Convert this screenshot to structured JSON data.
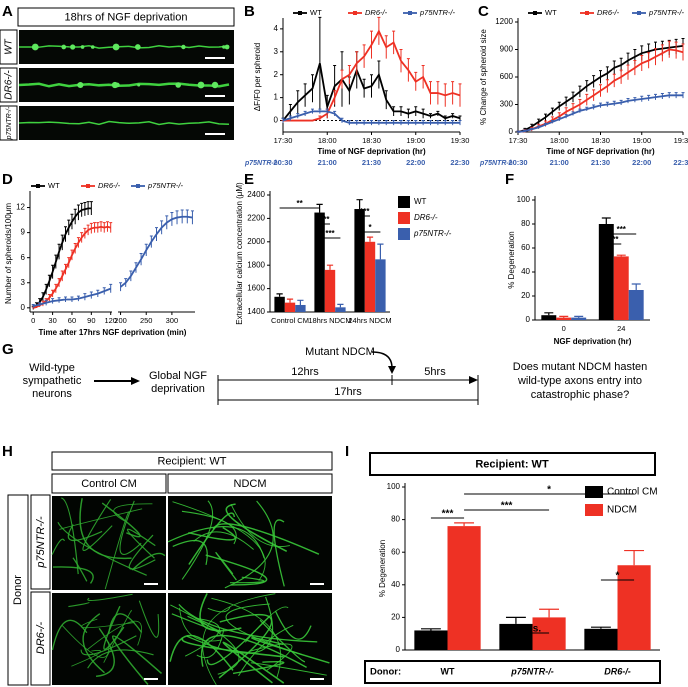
{
  "panel_labels": [
    "A",
    "B",
    "C",
    "D",
    "E",
    "F",
    "G",
    "H",
    "I"
  ],
  "panel_a": {
    "title": "18hrs of NGF deprivation",
    "rows": [
      "WT",
      "DR6-/-",
      "p75NTR-/-"
    ]
  },
  "chart_data": [
    {
      "type": "line",
      "ylabel": "ΔF/F0 per spheroid",
      "xlabel": "Time of NGF deprivation (hr)",
      "xlim": [
        1050,
        1170
      ],
      "xticks": [
        {
          "value": 1050,
          "label": "17:30"
        },
        {
          "value": 1080,
          "label": "18:00"
        },
        {
          "value": 1110,
          "label": "18:30"
        },
        {
          "value": 1140,
          "label": "19:00"
        },
        {
          "value": 1170,
          "label": "19:30"
        }
      ],
      "x2label": "p75NTR-/-",
      "x2lim": [
        1230,
        1350
      ],
      "x2ticks": [
        {
          "value": 1230,
          "label": "20:30"
        },
        {
          "value": 1260,
          "label": "21:00"
        },
        {
          "value": 1290,
          "label": "21:30"
        },
        {
          "value": 1320,
          "label": "22:00"
        },
        {
          "value": 1350,
          "label": "22:30"
        }
      ],
      "ylim": [
        -0.5,
        4.3
      ],
      "yticks": [
        0,
        1,
        2,
        3,
        4
      ],
      "reference_line": 0,
      "x": [
        1050,
        1055,
        1060,
        1065,
        1070,
        1075,
        1080,
        1085,
        1090,
        1095,
        1100,
        1105,
        1110,
        1115,
        1120,
        1125,
        1130,
        1135,
        1140,
        1145,
        1150,
        1155,
        1160,
        1165,
        1170
      ],
      "series": [
        {
          "name": "WT",
          "color": "#000000",
          "values": [
            0.0,
            0.4,
            0.8,
            1.1,
            1.4,
            2.5,
            0.6,
            1.5,
            1.8,
            1.3,
            2.2,
            1.4,
            1.5,
            2.0,
            0.9,
            0.4,
            0.4,
            0.3,
            0.4,
            0.3,
            0.2,
            0.3,
            0.1,
            0.2,
            0.1
          ],
          "errors": [
            0.1,
            0.3,
            0.5,
            0.5,
            0.6,
            2.0,
            0.5,
            0.9,
            1.2,
            0.6,
            0.8,
            0.4,
            0.5,
            0.6,
            0.4,
            0.2,
            0.2,
            0.2,
            0.2,
            0.2,
            0.1,
            0.1,
            0.1,
            0.1,
            0.1
          ]
        },
        {
          "name": "DR6-/-",
          "color": "#ee3124",
          "values": [
            0.0,
            0.0,
            0.0,
            0.0,
            0.0,
            0.1,
            0.3,
            1.0,
            1.8,
            2.0,
            2.5,
            2.8,
            3.3,
            3.9,
            3.2,
            3.4,
            2.6,
            2.2,
            1.7,
            1.9,
            1.2,
            1.2,
            1.1,
            1.2,
            1.1
          ],
          "errors": [
            0.0,
            0.0,
            0.0,
            0.0,
            0.0,
            0.1,
            0.2,
            0.3,
            0.4,
            0.4,
            0.5,
            0.5,
            0.6,
            0.6,
            0.5,
            0.5,
            0.5,
            0.5,
            0.4,
            0.5,
            0.5,
            0.5,
            0.5,
            0.5,
            0.5
          ]
        },
        {
          "name": "p75NTR-/-",
          "color": "#3a5fad",
          "axis": "x2",
          "x": [
            1230,
            1235,
            1240,
            1245,
            1250,
            1255,
            1260,
            1265,
            1270,
            1275,
            1280,
            1285,
            1290,
            1295,
            1300,
            1305,
            1310,
            1315,
            1320,
            1325,
            1330,
            1335,
            1340,
            1345,
            1350
          ],
          "values": [
            0.0,
            0.1,
            0.2,
            0.3,
            0.4,
            0.4,
            0.4,
            0.3,
            0.0,
            -0.1,
            -0.1,
            -0.1,
            -0.1,
            -0.1,
            -0.1,
            -0.1,
            -0.1,
            -0.1,
            -0.1,
            -0.1,
            -0.1,
            -0.1,
            -0.1,
            -0.1,
            -0.1
          ],
          "errors": [
            0.1,
            0.1,
            0.1,
            0.1,
            0.1,
            0.1,
            0.1,
            0.1,
            0.1,
            0.1,
            0.1,
            0.1,
            0.1,
            0.1,
            0.1,
            0.1,
            0.1,
            0.1,
            0.1,
            0.1,
            0.1,
            0.1,
            0.1,
            0.1,
            0.1
          ]
        }
      ]
    },
    {
      "type": "line",
      "ylabel": "% Change of spheroid size",
      "xlabel": "Time of NGF deprivation (hr)",
      "xlim": [
        1050,
        1170
      ],
      "xticks": [
        {
          "value": 1050,
          "label": "17:30"
        },
        {
          "value": 1080,
          "label": "18:00"
        },
        {
          "value": 1110,
          "label": "18:30"
        },
        {
          "value": 1140,
          "label": "19:00"
        },
        {
          "value": 1170,
          "label": "19:30"
        }
      ],
      "x2label": "p75NTR-/-",
      "x2lim": [
        1230,
        1350
      ],
      "x2ticks": [
        {
          "value": 1230,
          "label": "20:30"
        },
        {
          "value": 1260,
          "label": "21:00"
        },
        {
          "value": 1290,
          "label": "21:30"
        },
        {
          "value": 1320,
          "label": "22:00"
        },
        {
          "value": 1350,
          "label": "22:30"
        }
      ],
      "ylim": [
        0,
        1200
      ],
      "yticks": [
        0,
        300,
        600,
        900,
        1200
      ],
      "x": [
        1050,
        1055,
        1060,
        1065,
        1070,
        1075,
        1080,
        1085,
        1090,
        1095,
        1100,
        1105,
        1110,
        1115,
        1120,
        1125,
        1130,
        1135,
        1140,
        1145,
        1150,
        1155,
        1160,
        1165,
        1170
      ],
      "series": [
        {
          "name": "WT",
          "color": "#000000",
          "values": [
            0,
            20,
            60,
            110,
            160,
            220,
            280,
            330,
            380,
            440,
            500,
            550,
            600,
            640,
            700,
            730,
            780,
            820,
            860,
            880,
            900,
            910,
            920,
            930,
            940
          ],
          "errors": [
            10,
            20,
            25,
            30,
            35,
            40,
            45,
            50,
            55,
            60,
            60,
            65,
            70,
            70,
            75,
            75,
            80,
            80,
            80,
            80,
            80,
            80,
            80,
            80,
            80
          ]
        },
        {
          "name": "DR6-/-",
          "color": "#ee3124",
          "values": [
            0,
            10,
            30,
            60,
            90,
            130,
            170,
            220,
            260,
            300,
            350,
            400,
            450,
            500,
            560,
            600,
            650,
            700,
            750,
            780,
            820,
            860,
            900,
            890,
            870
          ],
          "errors": [
            10,
            15,
            20,
            25,
            30,
            35,
            40,
            45,
            50,
            55,
            60,
            60,
            65,
            70,
            70,
            75,
            80,
            80,
            85,
            85,
            90,
            90,
            90,
            90,
            90
          ]
        },
        {
          "name": "p75NTR-/-",
          "color": "#3a5fad",
          "axis": "x2",
          "x": [
            1230,
            1235,
            1240,
            1245,
            1250,
            1255,
            1260,
            1265,
            1270,
            1275,
            1280,
            1285,
            1290,
            1295,
            1300,
            1305,
            1310,
            1315,
            1320,
            1325,
            1330,
            1335,
            1340,
            1345,
            1350
          ],
          "values": [
            0,
            10,
            30,
            50,
            80,
            110,
            140,
            170,
            200,
            230,
            250,
            270,
            290,
            300,
            310,
            320,
            340,
            350,
            360,
            370,
            380,
            390,
            400,
            400,
            400
          ],
          "errors": [
            10,
            10,
            10,
            15,
            15,
            15,
            20,
            20,
            20,
            20,
            20,
            25,
            25,
            25,
            25,
            25,
            25,
            25,
            30,
            30,
            30,
            30,
            30,
            30,
            30
          ]
        }
      ]
    },
    {
      "type": "line",
      "ylabel": "Number of spheroids/100μm",
      "xlabel": "Time after 17hrs NGF deprivation (min)",
      "xlim_segments": [
        [
          -5,
          122
        ],
        [
          195,
          345
        ]
      ],
      "xticks": [
        0,
        30,
        60,
        90,
        120,
        200,
        250,
        300
      ],
      "ylim": [
        -0.5,
        13.5
      ],
      "yticks": [
        0,
        3,
        6,
        9,
        12
      ],
      "series": [
        {
          "name": "WT",
          "color": "#000000",
          "x": [
            0,
            5,
            10,
            15,
            20,
            25,
            30,
            35,
            40,
            45,
            50,
            55,
            60,
            65,
            70,
            75,
            80,
            85,
            90
          ],
          "values": [
            0,
            0.3,
            0.7,
            1.3,
            2.2,
            3.2,
            4.3,
            5.5,
            6.7,
            7.8,
            8.8,
            9.6,
            10.3,
            10.9,
            11.4,
            11.7,
            11.8,
            11.9,
            11.9
          ],
          "errors": [
            0.2,
            0.3,
            0.4,
            0.5,
            0.6,
            0.7,
            0.8,
            0.8,
            0.9,
            0.9,
            0.9,
            0.9,
            0.9,
            0.9,
            0.9,
            0.8,
            0.8,
            0.8,
            0.8
          ]
        },
        {
          "name": "DR6-/-",
          "color": "#ee3124",
          "x": [
            0,
            5,
            10,
            15,
            20,
            25,
            30,
            35,
            40,
            45,
            50,
            55,
            60,
            65,
            70,
            75,
            80,
            85,
            90,
            95,
            100,
            105,
            110,
            115,
            120
          ],
          "values": [
            0,
            0.1,
            0.3,
            0.5,
            0.8,
            1.2,
            1.7,
            2.3,
            3.0,
            3.8,
            4.6,
            5.4,
            6.3,
            7.1,
            7.8,
            8.4,
            8.9,
            9.3,
            9.5,
            9.6,
            9.6,
            9.7,
            9.6,
            9.7,
            9.6
          ],
          "errors": [
            0.1,
            0.1,
            0.2,
            0.3,
            0.3,
            0.4,
            0.4,
            0.5,
            0.5,
            0.6,
            0.6,
            0.6,
            0.6,
            0.6,
            0.6,
            0.6,
            0.6,
            0.6,
            0.6,
            0.6,
            0.6,
            0.6,
            0.6,
            0.6,
            0.6
          ]
        },
        {
          "name": "p75NTR-/-",
          "color": "#3a5fad",
          "x": [
            0,
            10,
            20,
            30,
            40,
            50,
            60,
            70,
            80,
            90,
            100,
            110,
            120,
            200,
            210,
            220,
            230,
            240,
            250,
            260,
            270,
            280,
            290,
            300,
            310,
            320,
            330,
            340
          ],
          "values": [
            0.2,
            0.4,
            0.6,
            0.8,
            0.9,
            1.0,
            1.0,
            1.1,
            1.3,
            1.5,
            1.7,
            2.0,
            2.3,
            2.5,
            3.0,
            3.8,
            4.8,
            5.8,
            6.9,
            7.9,
            8.8,
            9.6,
            10.2,
            10.6,
            10.8,
            10.9,
            10.9,
            10.8
          ],
          "errors": [
            0.2,
            0.2,
            0.3,
            0.3,
            0.3,
            0.3,
            0.3,
            0.3,
            0.4,
            0.4,
            0.4,
            0.4,
            0.5,
            0.5,
            0.5,
            0.6,
            0.6,
            0.7,
            0.7,
            0.7,
            0.8,
            0.8,
            0.8,
            0.8,
            0.8,
            0.8,
            0.8,
            0.8
          ]
        }
      ]
    },
    {
      "type": "bar",
      "ylabel": "Extracellular calcium concentration (μM)",
      "categories": [
        "Control CM",
        "18hrs NDCM",
        "24hrs NDCM"
      ],
      "ylim": [
        1400,
        2400
      ],
      "yticks": [
        1400,
        1600,
        1800,
        2000,
        2200,
        2400
      ],
      "series": [
        {
          "name": "WT",
          "color": "#000000",
          "values": [
            1530,
            2250,
            2280
          ],
          "errors": [
            25,
            70,
            80
          ]
        },
        {
          "name": "DR6-/-",
          "color": "#ee3124",
          "values": [
            1480,
            1760,
            2000
          ],
          "errors": [
            30,
            40,
            40
          ]
        },
        {
          "name": "p75NTR-/-",
          "color": "#3a5fad",
          "values": [
            1460,
            1440,
            1850
          ],
          "errors": [
            40,
            25,
            130
          ]
        }
      ],
      "annotations": [
        "**",
        "***",
        "***",
        "***",
        "*"
      ]
    },
    {
      "type": "bar",
      "ylabel": "% Degeneration",
      "xlabel": "NGF deprivation (hr)",
      "categories": [
        "0",
        "24"
      ],
      "ylim": [
        0,
        100
      ],
      "yticks": [
        0,
        20,
        40,
        60,
        80,
        100
      ],
      "series": [
        {
          "name": "WT",
          "color": "#000000",
          "values": [
            4,
            80
          ],
          "errors": [
            2,
            5
          ]
        },
        {
          "name": "DR6-/-",
          "color": "#ee3124",
          "values": [
            2,
            53
          ],
          "errors": [
            1,
            1
          ]
        },
        {
          "name": "p75NTR-/-",
          "color": "#3a5fad",
          "values": [
            2,
            25
          ],
          "errors": [
            1,
            5
          ]
        }
      ],
      "annotations": [
        "***",
        "***"
      ]
    },
    {
      "type": "bar",
      "title": "Recipient: WT",
      "ylabel": "% Degeneration",
      "xlabel": "Donor:",
      "categories": [
        "WT",
        "p75NTR-/-",
        "DR6-/-"
      ],
      "ylim": [
        0,
        100
      ],
      "yticks": [
        0,
        20,
        40,
        60,
        80,
        100
      ],
      "series": [
        {
          "name": "Control CM",
          "color": "#000000",
          "values": [
            12,
            16,
            13
          ],
          "errors": [
            1,
            4,
            1
          ]
        },
        {
          "name": "NDCM",
          "color": "#ee3124",
          "values": [
            76,
            20,
            52
          ],
          "errors": [
            2,
            5,
            9
          ]
        }
      ],
      "annotations": [
        "***",
        "***",
        "*",
        "n.s.",
        "*"
      ]
    }
  ],
  "schematic": {
    "start": [
      "Wild-type",
      "sympathetic",
      "neurons"
    ],
    "step": [
      "Global NGF",
      "deprivation"
    ],
    "treatment": "Mutant NDCM",
    "first_interval": "12hrs",
    "second_interval": "5hrs",
    "total_interval": "17hrs",
    "question": [
      "Does mutant NDCM hasten",
      "wild-type axons entry into",
      "catastrophic phase?"
    ]
  },
  "panel_h": {
    "title": "Recipient: WT",
    "columns": [
      "Control CM",
      "NDCM"
    ],
    "side_label": "Donor",
    "rows": [
      "p75NTR-/-",
      "DR6-/-"
    ]
  }
}
